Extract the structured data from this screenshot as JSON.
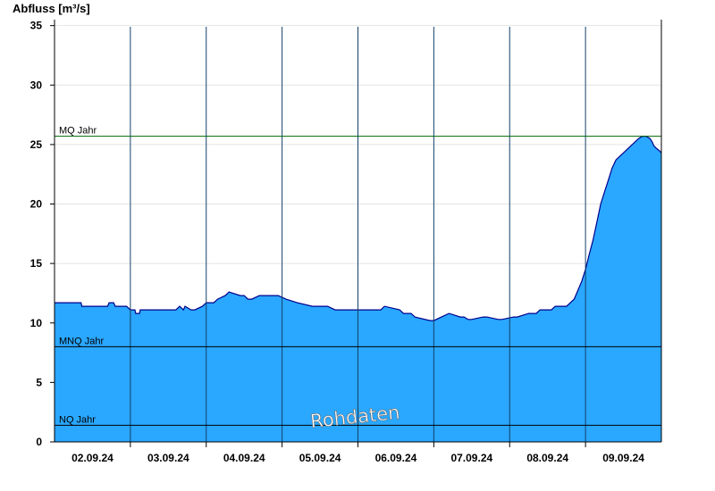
{
  "chart_data": {
    "type": "area",
    "title": "",
    "ylabel": "Abfluss [m³/s]",
    "xlabel": "",
    "ylim": [
      0,
      35.5
    ],
    "yticks": [
      0,
      5,
      10,
      15,
      20,
      25,
      30,
      35
    ],
    "xlim": [
      0,
      8.0
    ],
    "day_labels": [
      "02.09.24",
      "03.09.24",
      "04.09.24",
      "05.09.24",
      "06.09.24",
      "07.09.24",
      "08.09.24",
      "09.09.24"
    ],
    "day_boundaries": [
      1,
      2,
      3,
      4,
      5,
      6,
      7
    ],
    "grid": true,
    "fill_color": "#2aa7ff",
    "line_color": "#00008b",
    "series": [
      {
        "x": [
          0.0,
          0.35,
          0.36,
          0.7,
          0.72,
          0.78,
          0.8,
          0.95,
          1.0,
          1.06,
          1.07,
          1.12,
          1.13,
          1.6,
          1.65,
          1.7,
          1.72,
          1.8,
          1.85,
          1.95,
          2.0,
          2.1,
          2.15,
          2.25,
          2.3,
          2.45,
          2.5,
          2.55,
          2.6,
          2.7,
          2.75,
          2.85,
          2.95,
          3.05,
          3.2,
          3.4,
          3.5,
          3.6,
          3.7,
          3.95,
          4.0,
          4.3,
          4.35,
          4.55,
          4.6,
          4.7,
          4.75,
          4.95,
          5.0,
          5.1,
          5.2,
          5.35,
          5.4,
          5.45,
          5.5,
          5.65,
          5.7,
          5.85,
          5.9,
          6.05,
          6.1,
          6.25,
          6.3,
          6.35,
          6.4,
          6.55,
          6.6,
          6.75,
          6.85,
          6.95,
          7.0,
          7.05,
          7.1,
          7.15,
          7.2,
          7.25,
          7.3,
          7.35,
          7.4,
          7.45,
          7.5,
          7.55,
          7.6,
          7.65,
          7.7,
          7.75,
          7.8,
          7.85,
          7.88,
          7.9,
          7.93,
          7.97,
          8.0
        ],
        "y": [
          11.7,
          11.7,
          11.4,
          11.4,
          11.7,
          11.7,
          11.4,
          11.4,
          11.1,
          11.1,
          10.8,
          10.8,
          11.1,
          11.1,
          11.4,
          11.1,
          11.4,
          11.1,
          11.1,
          11.4,
          11.7,
          11.7,
          12.0,
          12.3,
          12.6,
          12.3,
          12.3,
          12.0,
          12.0,
          12.3,
          12.3,
          12.3,
          12.3,
          12.0,
          11.7,
          11.4,
          11.4,
          11.4,
          11.1,
          11.1,
          11.1,
          11.1,
          11.4,
          11.1,
          10.8,
          10.8,
          10.5,
          10.2,
          10.2,
          10.5,
          10.8,
          10.5,
          10.5,
          10.3,
          10.3,
          10.5,
          10.5,
          10.3,
          10.3,
          10.5,
          10.5,
          10.8,
          10.8,
          10.8,
          11.1,
          11.1,
          11.4,
          11.4,
          12.0,
          13.5,
          14.5,
          15.8,
          17.0,
          18.5,
          20.0,
          21.0,
          22.0,
          23.0,
          23.7,
          24.0,
          24.3,
          24.6,
          24.9,
          25.2,
          25.5,
          25.7,
          25.7,
          25.5,
          25.2,
          24.9,
          24.7,
          24.5,
          24.3
        ]
      }
    ],
    "reference_lines": [
      {
        "label": "MQ Jahr",
        "value": 25.7,
        "color": "#006400"
      },
      {
        "label": "MNQ Jahr",
        "value": 8.0,
        "color": "#000000"
      },
      {
        "label": "NQ Jahr",
        "value": 1.4,
        "color": "#000000"
      }
    ],
    "watermark": "Rohdaten"
  }
}
